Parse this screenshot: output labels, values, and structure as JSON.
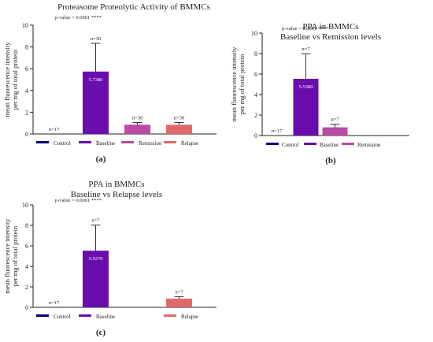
{
  "colors": {
    "control": "#000080",
    "baseline": "#6a0dad",
    "remission": "#b94aa6",
    "relapse": "#e06a6a"
  },
  "chart_data": [
    {
      "type": "bar",
      "panel_label": "(a)",
      "title": "Proteasome Proteolytic Activity of BMMCs",
      "subtitle": "",
      "ylabel": "mean fluorescence intensity per mg of total protein",
      "ylabel_lines": [
        "mean fluorescence intensity",
        "per mg of total protein"
      ],
      "ylim": [
        0,
        10
      ],
      "yticks": [
        "0",
        "2",
        "4",
        "6",
        "8",
        "10"
      ],
      "pvalue": "p-value < 0.0001 ****",
      "categories": [
        "Control",
        "Baseline",
        "Remission",
        "Relapse"
      ],
      "values": [
        0,
        5.738,
        0.85,
        0.85
      ],
      "errors": [
        0,
        2.6,
        0.2,
        0.2
      ],
      "counts": [
        "n=17",
        "n=30",
        "n=30",
        "n=30"
      ],
      "value_labels": [
        "",
        "5.7380",
        "",
        ""
      ],
      "legend": [
        "Control",
        "Baseline",
        "Remission",
        "Relapse"
      ]
    },
    {
      "type": "bar",
      "panel_label": "(b)",
      "title": "PPA in BMMCs",
      "subtitle": "Baseline vs Remission levels",
      "ylabel": "mean fluorescence intensity per mg of total protein",
      "ylabel_lines": [
        "mean fluorescence intensity",
        "per mg of total protein"
      ],
      "ylim": [
        0,
        10
      ],
      "yticks": [
        "0",
        "2",
        "4",
        "6",
        "8",
        "10"
      ],
      "pvalue": "p-value < 0.0001 ****",
      "categories": [
        "Control",
        "Baseline",
        "Remission"
      ],
      "values": [
        0,
        5.538,
        0.8
      ],
      "errors": [
        0,
        2.45,
        0.3
      ],
      "counts": [
        "n=17",
        "n=7",
        "n=7"
      ],
      "value_labels": [
        "",
        "5.5380",
        ""
      ],
      "legend": [
        "Control",
        "Baseline",
        "Remission"
      ]
    },
    {
      "type": "bar",
      "panel_label": "(c)",
      "title": "PPA in BMMCs",
      "subtitle": "Baseline vs Relapse levels",
      "ylabel": "mean fluorescence intensity per mg of total protein",
      "ylabel_lines": [
        "mean fluorescence intensity",
        "per mg of total protein"
      ],
      "ylim": [
        0,
        10
      ],
      "yticks": [
        "0",
        "2",
        "4",
        "6",
        "8",
        "10"
      ],
      "pvalue": "p-value < 0.0001 ****",
      "categories": [
        "Control",
        "Baseline",
        "",
        "Relapse"
      ],
      "values": [
        0,
        5.527,
        null,
        0.85
      ],
      "errors": [
        0,
        2.5,
        null,
        0.2
      ],
      "counts": [
        "n=17",
        "n=7",
        "",
        "n=7"
      ],
      "value_labels": [
        "",
        "5.5270",
        "",
        ""
      ],
      "legend": [
        "Control",
        "Baseline",
        "",
        "Relapse"
      ]
    }
  ]
}
